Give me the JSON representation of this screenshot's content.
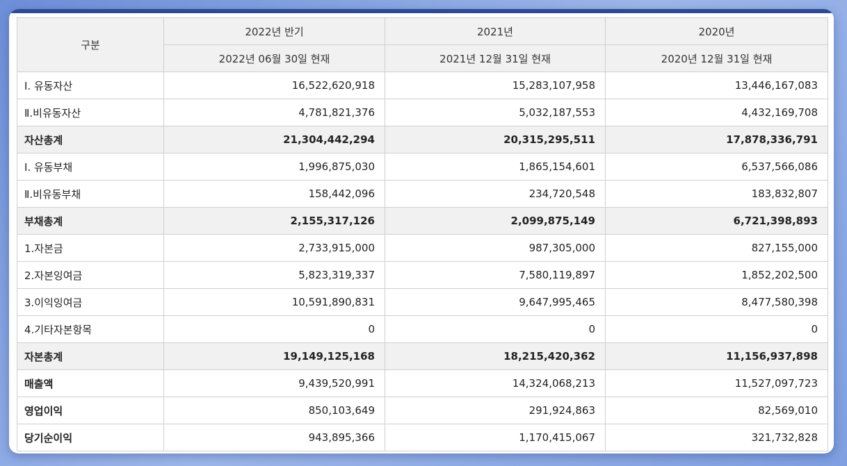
{
  "header": {
    "category": "구분",
    "columns": [
      {
        "period": "2022년 반기",
        "asof": "2022년 06월 30일 현재"
      },
      {
        "period": "2021년",
        "asof": "2021년 12월 31일 현재"
      },
      {
        "period": "2020년",
        "asof": "2020년 12월 31일 현재"
      }
    ]
  },
  "rows": [
    {
      "label": "Ⅰ. 유동자산",
      "values": [
        "16,522,620,918",
        "15,283,107,958",
        "13,446,167,083"
      ]
    },
    {
      "label": "Ⅱ.비유동자산",
      "values": [
        "4,781,821,376",
        "5,032,187,553",
        "4,432,169,708"
      ]
    },
    {
      "label": "자산총계",
      "values": [
        "21,304,442,294",
        "20,315,295,511",
        "17,878,336,791"
      ]
    },
    {
      "label": "Ⅰ. 유동부채",
      "values": [
        "1,996,875,030",
        "1,865,154,601",
        "6,537,566,086"
      ]
    },
    {
      "label": "Ⅱ.비유동부채",
      "values": [
        "158,442,096",
        "234,720,548",
        "183,832,807"
      ]
    },
    {
      "label": "부채총계",
      "values": [
        "2,155,317,126",
        "2,099,875,149",
        "6,721,398,893"
      ]
    },
    {
      "label": "1.자본금",
      "values": [
        "2,733,915,000",
        "987,305,000",
        "827,155,000"
      ]
    },
    {
      "label": "2.자본잉여금",
      "values": [
        "5,823,319,337",
        "7,580,119,897",
        "1,852,202,500"
      ]
    },
    {
      "label": "3.이익잉여금",
      "values": [
        "10,591,890,831",
        "9,647,995,465",
        "8,477,580,398"
      ]
    },
    {
      "label": "4.기타자본항목",
      "values": [
        "0",
        "0",
        "0"
      ]
    },
    {
      "label": "자본총계",
      "values": [
        "19,149,125,168",
        "18,215,420,362",
        "11,156,937,898"
      ]
    },
    {
      "label": "매출액",
      "values": [
        "9,439,520,991",
        "14,324,068,213",
        "11,527,097,723"
      ]
    },
    {
      "label": "영업이익",
      "values": [
        "850,103,649",
        "291,924,863",
        "82,569,010"
      ]
    },
    {
      "label": "당기순이익",
      "values": [
        "943,895,366",
        "1,170,415,067",
        "321,732,828"
      ]
    }
  ]
}
